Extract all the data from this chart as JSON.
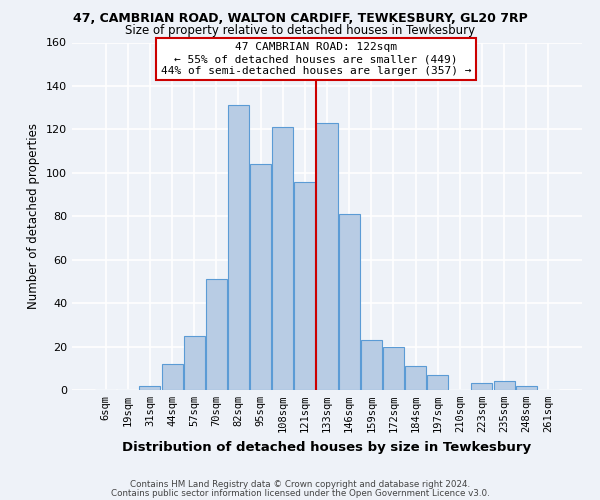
{
  "title_line1": "47, CAMBRIAN ROAD, WALTON CARDIFF, TEWKESBURY, GL20 7RP",
  "title_line2": "Size of property relative to detached houses in Tewkesbury",
  "xlabel": "Distribution of detached houses by size in Tewkesbury",
  "ylabel": "Number of detached properties",
  "bar_labels": [
    "6sqm",
    "19sqm",
    "31sqm",
    "44sqm",
    "57sqm",
    "70sqm",
    "82sqm",
    "95sqm",
    "108sqm",
    "121sqm",
    "133sqm",
    "146sqm",
    "159sqm",
    "172sqm",
    "184sqm",
    "197sqm",
    "210sqm",
    "223sqm",
    "235sqm",
    "248sqm",
    "261sqm"
  ],
  "bar_values": [
    0,
    0,
    2,
    12,
    25,
    51,
    131,
    104,
    121,
    96,
    123,
    81,
    23,
    20,
    11,
    7,
    0,
    3,
    4,
    2,
    0
  ],
  "bar_color": "#b8cce4",
  "bar_edge_color": "#5b9bd5",
  "background_color": "#eef2f8",
  "grid_color": "#ffffff",
  "vline_x": 9.5,
  "vline_color": "#cc0000",
  "annotation_title": "47 CAMBRIAN ROAD: 122sqm",
  "annotation_line1": "← 55% of detached houses are smaller (449)",
  "annotation_line2": "44% of semi-detached houses are larger (357) →",
  "annotation_box_color": "#cc0000",
  "ylim": [
    0,
    160
  ],
  "yticks": [
    0,
    20,
    40,
    60,
    80,
    100,
    120,
    140,
    160
  ],
  "footer_line1": "Contains HM Land Registry data © Crown copyright and database right 2024.",
  "footer_line2": "Contains public sector information licensed under the Open Government Licence v3.0."
}
